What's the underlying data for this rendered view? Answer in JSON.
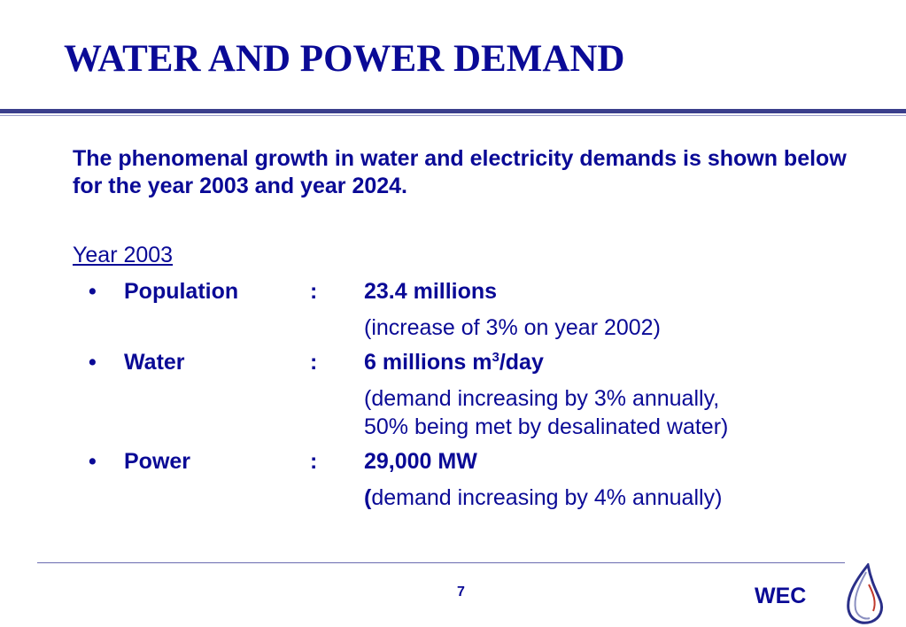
{
  "slide": {
    "title": "WATER AND POWER DEMAND",
    "intro": "The phenomenal growth in water and electricity demands is shown below for the year 2003 and year 2024.",
    "year_heading": "Year 2003",
    "items": [
      {
        "bullet": "•",
        "label": "Population",
        "colon": ":",
        "value": "23.4 millions",
        "notes": [
          "(increase of 3% on year 2002)"
        ]
      },
      {
        "bullet": "•",
        "label": "Water",
        "colon": ":",
        "value_prefix": "6 millions m",
        "value_sup": "3",
        "value_suffix": "/day",
        "notes": [
          "(demand increasing by 3% annually,",
          "50% being met by desalinated water)"
        ]
      },
      {
        "bullet": "•",
        "label": "Power",
        "colon": ":",
        "value": "29,000 MW",
        "note_paren": "(",
        "note_rest": "demand increasing by 4% annually)"
      }
    ],
    "page_number": "7",
    "brand": "WEC",
    "logo_icon": "water-drop-logo-icon",
    "text_color": "#0a0a96",
    "rule_color": "#3b3f8c"
  }
}
